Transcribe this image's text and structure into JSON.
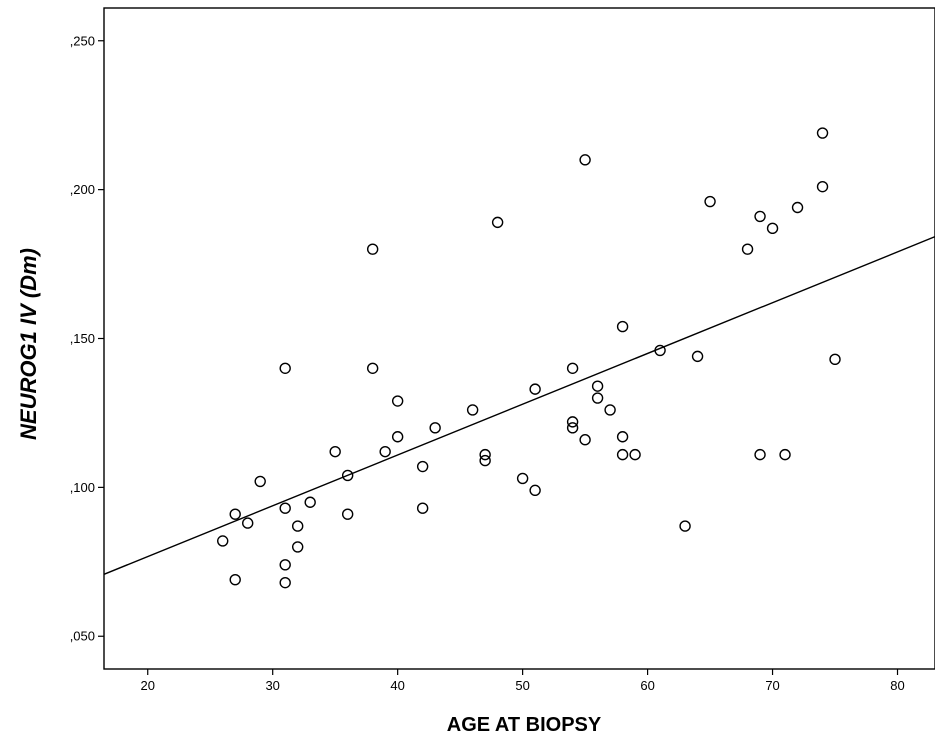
{
  "chart_data": {
    "type": "scatter",
    "title": "",
    "xlabel": "AGE AT BIOPSY",
    "ylabel": "NEUROG1 IV (Dm)",
    "xlim": [
      16.5,
      83
    ],
    "ylim": [
      0.039,
      0.261
    ],
    "x_ticks": [
      20,
      30,
      40,
      50,
      60,
      70,
      80
    ],
    "x_tick_labels": [
      "20",
      "30",
      "40",
      "50",
      "60",
      "70",
      "80"
    ],
    "y_ticks": [
      0.05,
      0.1,
      0.15,
      0.2,
      0.25
    ],
    "y_tick_labels": [
      ",050",
      ",100",
      ",150",
      ",200",
      ",250"
    ],
    "grid": false,
    "points": [
      {
        "x": 26,
        "y": 0.082
      },
      {
        "x": 27,
        "y": 0.091
      },
      {
        "x": 27,
        "y": 0.069
      },
      {
        "x": 28,
        "y": 0.088
      },
      {
        "x": 29,
        "y": 0.102
      },
      {
        "x": 31,
        "y": 0.14
      },
      {
        "x": 31,
        "y": 0.093
      },
      {
        "x": 31,
        "y": 0.074
      },
      {
        "x": 31,
        "y": 0.068
      },
      {
        "x": 32,
        "y": 0.087
      },
      {
        "x": 32,
        "y": 0.08
      },
      {
        "x": 33,
        "y": 0.095
      },
      {
        "x": 35,
        "y": 0.112
      },
      {
        "x": 36,
        "y": 0.104
      },
      {
        "x": 36,
        "y": 0.091
      },
      {
        "x": 38,
        "y": 0.18
      },
      {
        "x": 38,
        "y": 0.14
      },
      {
        "x": 39,
        "y": 0.112
      },
      {
        "x": 40,
        "y": 0.129
      },
      {
        "x": 40,
        "y": 0.117
      },
      {
        "x": 42,
        "y": 0.107
      },
      {
        "x": 42,
        "y": 0.093
      },
      {
        "x": 43,
        "y": 0.12
      },
      {
        "x": 46,
        "y": 0.126
      },
      {
        "x": 47,
        "y": 0.111
      },
      {
        "x": 47,
        "y": 0.109
      },
      {
        "x": 48,
        "y": 0.189
      },
      {
        "x": 50,
        "y": 0.103
      },
      {
        "x": 51,
        "y": 0.133
      },
      {
        "x": 51,
        "y": 0.099
      },
      {
        "x": 54,
        "y": 0.14
      },
      {
        "x": 54,
        "y": 0.122
      },
      {
        "x": 54,
        "y": 0.12
      },
      {
        "x": 55,
        "y": 0.21
      },
      {
        "x": 55,
        "y": 0.116
      },
      {
        "x": 56,
        "y": 0.134
      },
      {
        "x": 56,
        "y": 0.13
      },
      {
        "x": 57,
        "y": 0.126
      },
      {
        "x": 58,
        "y": 0.154
      },
      {
        "x": 58,
        "y": 0.117
      },
      {
        "x": 58,
        "y": 0.111
      },
      {
        "x": 59,
        "y": 0.111
      },
      {
        "x": 61,
        "y": 0.146
      },
      {
        "x": 63,
        "y": 0.087
      },
      {
        "x": 64,
        "y": 0.144
      },
      {
        "x": 65,
        "y": 0.196
      },
      {
        "x": 68,
        "y": 0.18
      },
      {
        "x": 69,
        "y": 0.191
      },
      {
        "x": 69,
        "y": 0.111
      },
      {
        "x": 70,
        "y": 0.187
      },
      {
        "x": 71,
        "y": 0.111
      },
      {
        "x": 72,
        "y": 0.194
      },
      {
        "x": 74,
        "y": 0.219
      },
      {
        "x": 74,
        "y": 0.201
      },
      {
        "x": 75,
        "y": 0.143
      }
    ],
    "fit_line": {
      "x": [
        16.5,
        83
      ],
      "y": [
        0.0708,
        0.1842
      ]
    }
  }
}
